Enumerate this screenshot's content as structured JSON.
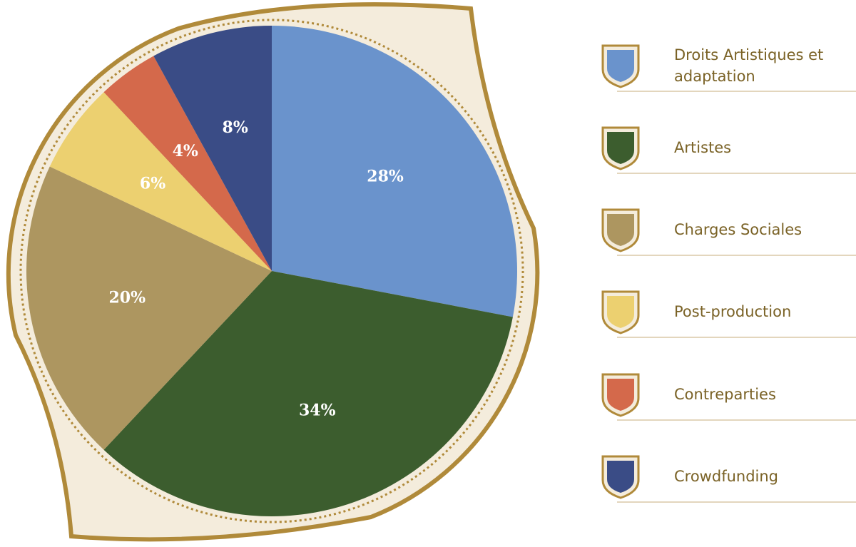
{
  "chart_data": {
    "type": "pie",
    "categories": [
      "Droits Artistiques et adaptation",
      "Artistes",
      "Charges Sociales",
      "Post-production",
      "Contreparties",
      "Crowdfunding"
    ],
    "values": [
      28,
      34,
      20,
      6,
      4,
      8
    ],
    "value_labels": [
      "28%",
      "34%",
      "20%",
      "6%",
      "4%",
      "8%"
    ],
    "colors": [
      "#6a93cc",
      "#3c5d2e",
      "#ad9660",
      "#ecd070",
      "#d4694b",
      "#3a4c86"
    ],
    "legend": "right"
  }
}
